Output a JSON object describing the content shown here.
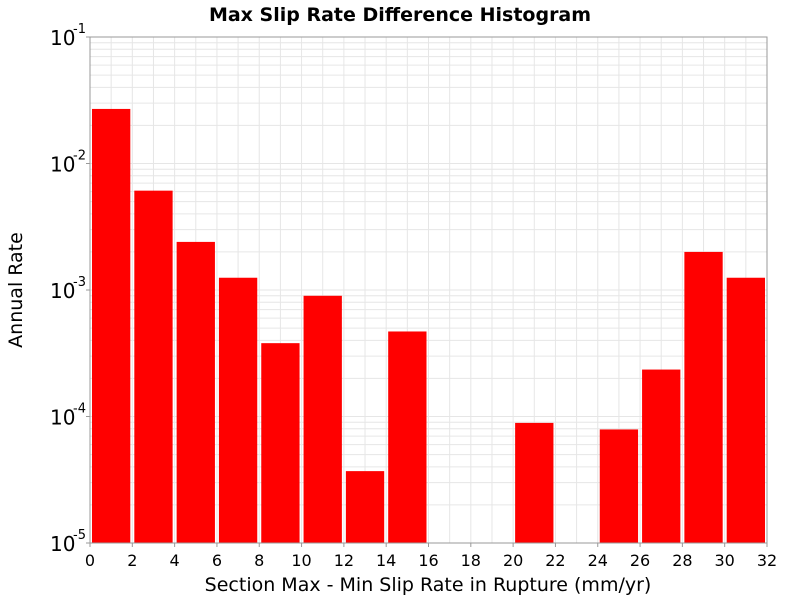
{
  "chart_data": {
    "type": "bar",
    "title": "Max Slip Rate Difference Histogram",
    "xlabel": "Section Max - Min Slip Rate in Rupture (mm/yr)",
    "ylabel": "Annual Rate",
    "xlim": [
      0,
      32
    ],
    "ylim": [
      1e-05,
      0.1
    ],
    "yscale": "log",
    "bin_width": 2,
    "x_ticks": [
      "0",
      "2",
      "4",
      "6",
      "8",
      "10",
      "12",
      "14",
      "16",
      "18",
      "20",
      "22",
      "24",
      "26",
      "28",
      "30",
      "32"
    ],
    "y_ticks": [
      {
        "base": "10",
        "exp": "-1"
      },
      {
        "base": "10",
        "exp": "-2"
      },
      {
        "base": "10",
        "exp": "-3"
      },
      {
        "base": "10",
        "exp": "-4"
      },
      {
        "base": "10",
        "exp": "-5"
      }
    ],
    "bars": [
      {
        "x": 1,
        "value": 0.027
      },
      {
        "x": 3,
        "value": 0.0061
      },
      {
        "x": 5,
        "value": 0.0024
      },
      {
        "x": 7,
        "value": 0.00125
      },
      {
        "x": 9,
        "value": 0.00038
      },
      {
        "x": 11,
        "value": 0.0009
      },
      {
        "x": 13,
        "value": 3.7e-05
      },
      {
        "x": 15,
        "value": 0.00047
      },
      {
        "x": 21,
        "value": 8.9e-05
      },
      {
        "x": 25,
        "value": 7.9e-05
      },
      {
        "x": 27,
        "value": 0.000235
      },
      {
        "x": 29,
        "value": 0.002
      },
      {
        "x": 31,
        "value": 0.00125
      }
    ],
    "bar_color": "#ff0000",
    "grid": true,
    "grid_color": "#e6e6e6",
    "axis_color": "#999999"
  }
}
